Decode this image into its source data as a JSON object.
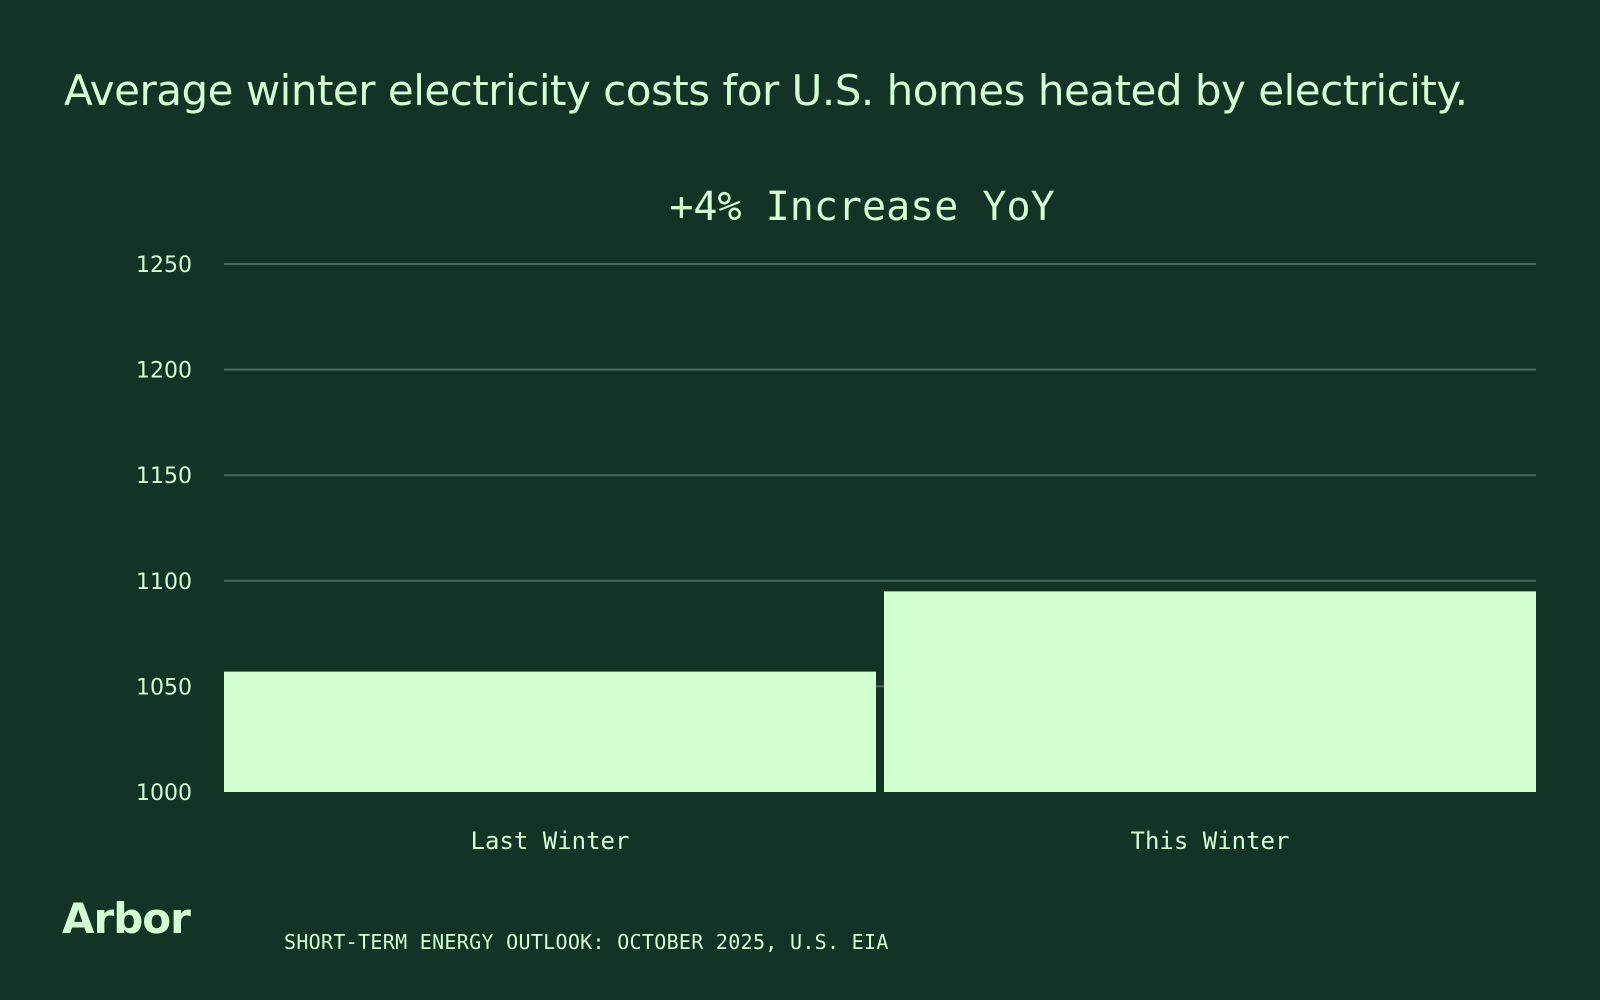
{
  "header": {
    "title": "Average winter electricity costs for U.S. homes heated by electricity."
  },
  "chart_data": {
    "type": "bar",
    "title": "+4% Increase YoY",
    "categories": [
      "Last Winter",
      "This Winter"
    ],
    "values": [
      1057,
      1095
    ],
    "ylim": [
      1000,
      1250
    ],
    "yticks": [
      "1000",
      "1050",
      "1100",
      "1150",
      "1200",
      "1250"
    ],
    "xlabel": "",
    "ylabel": "",
    "grid": true
  },
  "footer": {
    "logo": "Arbor",
    "source": "SHORT-TERM ENERGY OUTLOOK: OCTOBER 2025, U.S. EIA"
  },
  "colors": {
    "background": "#133326",
    "bar": "#D4FFD1",
    "grid": "#4F6B5E",
    "text": "#D4FFD1"
  }
}
